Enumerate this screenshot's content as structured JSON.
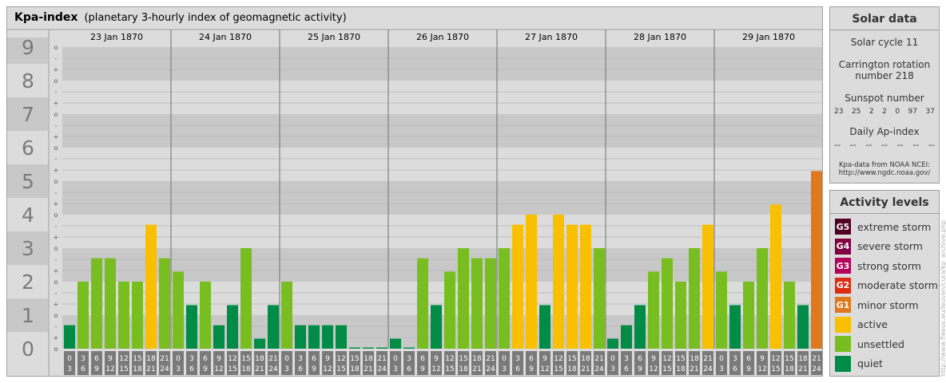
{
  "title": {
    "main": "Kpa-index",
    "sub": "(planetary 3-hourly index of geomagnetic activity)"
  },
  "y_labels": [
    "0",
    "1",
    "2",
    "3",
    "4",
    "5",
    "6",
    "7",
    "8",
    "9"
  ],
  "sub_ticks": [
    "o",
    "+",
    "-",
    "o",
    "+",
    "-",
    "o",
    "+",
    "-",
    "o",
    "+",
    "-",
    "o",
    "+",
    "-",
    "o",
    "+",
    "-",
    "o",
    "+",
    "-",
    "o",
    "+",
    "-",
    "o",
    "+",
    "-",
    "o"
  ],
  "hour_labels_top": [
    "0",
    "3",
    "6",
    "9",
    "12",
    "15",
    "18",
    "21"
  ],
  "hour_labels_bottom": [
    "3",
    "6",
    "9",
    "12",
    "15",
    "18",
    "21",
    "24"
  ],
  "chart_data": {
    "type": "bar",
    "title": "Kpa-index",
    "subtitle": "(planetary 3-hourly index of geomagnetic activity)",
    "ylim": [
      0,
      9
    ],
    "days": [
      "23 Jan 1870",
      "24 Jan 1870",
      "25 Jan 1870",
      "26 Jan 1870",
      "27 Jan 1870",
      "28 Jan 1870",
      "29 Jan 1870"
    ],
    "values": [
      0.7,
      2.0,
      2.7,
      2.7,
      2.0,
      2.0,
      3.7,
      2.7,
      2.3,
      1.3,
      2.0,
      0.7,
      1.3,
      3.0,
      0.3,
      1.3,
      2.0,
      0.7,
      0.7,
      0.7,
      0.7,
      0.0,
      0.0,
      0.0,
      0.3,
      0.0,
      2.7,
      1.3,
      2.3,
      3.0,
      2.7,
      2.7,
      3.0,
      3.7,
      4.0,
      1.3,
      4.0,
      3.7,
      3.7,
      3.0,
      0.3,
      0.7,
      1.3,
      2.3,
      2.7,
      2.0,
      3.0,
      3.7,
      2.3,
      1.3,
      2.0,
      3.0,
      4.3,
      2.0,
      1.3,
      5.3
    ],
    "grid": true
  },
  "solar": {
    "title": "Solar data",
    "cycle": "Solar cycle 11",
    "carrington_line1": "Carrington rotation",
    "carrington_line2": "number 218",
    "sunspot_label": "Sunspot number",
    "sunspot_values": [
      "23",
      "25",
      "2",
      "2",
      "0",
      "97",
      "37"
    ],
    "ap_label": "Daily Ap-index",
    "ap_values": [
      "--",
      "--",
      "--",
      "--",
      "--",
      "--",
      "--"
    ],
    "source_line1": "Kpa-data from NOAA NCEI:",
    "source_line2": "http://www.ngdc.noaa.gov/"
  },
  "activity": {
    "title": "Activity levels",
    "levels": [
      {
        "code": "G5",
        "label": "extreme storm",
        "color": "#500020"
      },
      {
        "code": "G4",
        "label": "severe storm",
        "color": "#800040"
      },
      {
        "code": "G3",
        "label": "strong storm",
        "color": "#b4005a"
      },
      {
        "code": "G2",
        "label": "moderate storm",
        "color": "#dc2d14"
      },
      {
        "code": "G1",
        "label": "minor storm",
        "color": "#e0781e"
      },
      {
        "code": "",
        "label": "active",
        "color": "#f8c000"
      },
      {
        "code": "",
        "label": "unsettled",
        "color": "#78be20"
      },
      {
        "code": "",
        "label": "quiet",
        "color": "#008c46"
      }
    ]
  },
  "colors": {
    "quiet": "#008c46",
    "unsettled": "#78be20",
    "active": "#f8c000",
    "minor_storm": "#e0781e"
  },
  "credit": "http://www.fleeus.eu/leuven/cura/kp_archive.php"
}
